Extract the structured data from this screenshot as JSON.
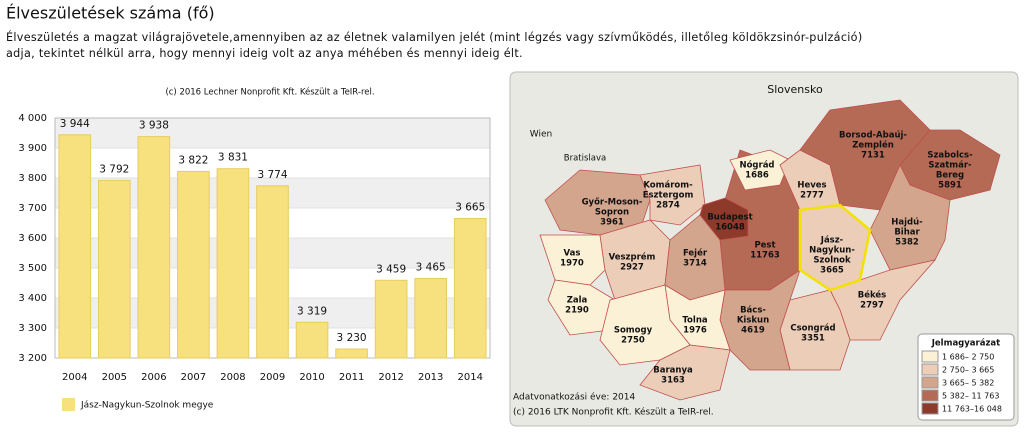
{
  "header": {
    "title": "Élveszületések száma (fő)",
    "description": [
      "Élveszületés a magzat világrajövetele,amennyiben az az életnek valamilyen jelét (mint légzés vagy szívműködés, illetőleg köldökzsinór-pulzáció)",
      "adja, tekintet nélkül arra, hogy mennyi ideig volt az anya méhében és mennyi ideig élt."
    ]
  },
  "chart_data": {
    "type": "bar",
    "subtitle": "(c) 2016 Lechner Nonprofit Kft. Készült a TeIR-rel.",
    "categories": [
      "2004",
      "2005",
      "2006",
      "2007",
      "2008",
      "2009",
      "2010",
      "2011",
      "2012",
      "2013",
      "2014"
    ],
    "series": [
      {
        "name": "Jász-Nagykun-Szolnok megye",
        "color": "#f7e07e",
        "values": [
          3944,
          3792,
          3938,
          3822,
          3831,
          3774,
          3319,
          3230,
          3459,
          3465,
          3665
        ],
        "value_labels": [
          "3 944",
          "3 792",
          "3 938",
          "3 822",
          "3 831",
          "3 774",
          "3 319",
          "3 230",
          "3 459",
          "3 465",
          "3 665"
        ]
      }
    ],
    "ylim": [
      3200,
      4000
    ],
    "yticks": [
      {
        "value": 3200,
        "label": "3 200"
      },
      {
        "value": 3300,
        "label": "3 300"
      },
      {
        "value": 3400,
        "label": "3 400"
      },
      {
        "value": 3500,
        "label": "3 500"
      },
      {
        "value": 3600,
        "label": "3 600"
      },
      {
        "value": 3700,
        "label": "3 700"
      },
      {
        "value": 3800,
        "label": "3 800"
      },
      {
        "value": 3900,
        "label": "3 900"
      },
      {
        "value": 4000,
        "label": "4 000"
      }
    ],
    "grid": true,
    "legend": "bottom-left"
  },
  "map": {
    "labels": [
      "Slovensko",
      "Wien",
      "Bratislava"
    ],
    "counties": [
      {
        "name": [
          "Pest"
        ],
        "value": 11763
      },
      {
        "name": [
          "Győr-Moson-",
          "Sopron"
        ],
        "value": 3961
      },
      {
        "name": [
          "Komárom-",
          "Esztergom"
        ],
        "value": 2874
      },
      {
        "name": [
          "Vas"
        ],
        "value": 1970
      },
      {
        "name": [
          "Zala"
        ],
        "value": 2190
      },
      {
        "name": [
          "Veszprém"
        ],
        "value": 2927
      },
      {
        "name": [
          "Fejér"
        ],
        "value": 3714
      },
      {
        "name": [
          "Budapest"
        ],
        "value": 16048
      },
      {
        "name": [
          "Nógrád"
        ],
        "value": 1686
      },
      {
        "name": [
          "Heves"
        ],
        "value": 2777
      },
      {
        "name": [
          "Borsod-Abaúj-",
          "Zemplén"
        ],
        "value": 7131
      },
      {
        "name": [
          "Szabolcs-",
          "Szatmár-",
          "Bereg"
        ],
        "value": 5891
      },
      {
        "name": [
          "Hajdú-",
          "Bihar"
        ],
        "value": 5382
      },
      {
        "name": [
          "Békés"
        ],
        "value": 2797
      },
      {
        "name": [
          "Csongrád"
        ],
        "value": 3351
      },
      {
        "name": [
          "Bács-",
          "Kiskun"
        ],
        "value": 4619
      },
      {
        "name": [
          "Tolna"
        ],
        "value": 1976
      },
      {
        "name": [
          "Somogy"
        ],
        "value": 2750
      },
      {
        "name": [
          "Baranya"
        ],
        "value": 3163
      },
      {
        "name": [
          "Jász-",
          "Nagykun-",
          "Szolnok"
        ],
        "value": 3665,
        "highlighted": true
      }
    ],
    "legend": {
      "title": "Jelmagyarázat",
      "classes": [
        {
          "label": "1 686– 2 750",
          "min": 1686,
          "max": 2750,
          "color": "#fbf1d6"
        },
        {
          "label": "2 750– 3 665",
          "min": 2750,
          "max": 3665,
          "color": "#ebcdb8"
        },
        {
          "label": "3 665– 5 382",
          "min": 3665,
          "max": 5382,
          "color": "#d3a58c"
        },
        {
          "label": "5 382– 11 763",
          "min": 5382,
          "max": 11763,
          "color": "#b46a55"
        },
        {
          "label": "11 763–16 048",
          "min": 11763,
          "max": 16048,
          "color": "#8e3a2a"
        }
      ]
    },
    "year_note": "Adatvonatkozási éve: 2014",
    "copyright": "(c) 2016 LTK Nonprofit Kft. Készült a TeIR-rel."
  }
}
